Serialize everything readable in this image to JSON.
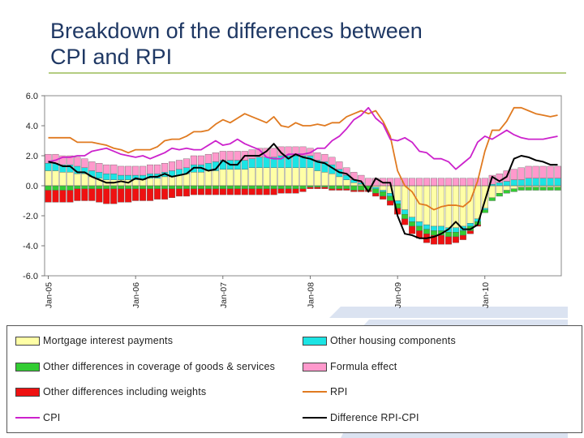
{
  "slide": {
    "title_line1": "Breakdown of the differences between",
    "title_line2": "CPI and RPI",
    "accent_color": "#9bbb59",
    "watermark_color": "#dbe3f1"
  },
  "chart_data": {
    "type": "bar",
    "stacked": true,
    "ylim": [
      -6,
      6
    ],
    "y_ticks": [
      "6.0",
      "4.0",
      "2.0",
      "0.0",
      "-2.0",
      "-4.0",
      "-6.0"
    ],
    "y_tick_values": [
      6,
      4,
      2,
      0,
      -2,
      -4,
      -6
    ],
    "x_tick_labels": [
      "Jan-05",
      "Jan-06",
      "Jan-07",
      "Jan-08",
      "Jan-09",
      "Jan-10"
    ],
    "x_tick_months": [
      0,
      12,
      24,
      36,
      48,
      60
    ],
    "grid": false,
    "legend_position": "bottom",
    "months": 71,
    "stack_series": [
      {
        "name": "Mortgage interest payments",
        "color": "#ffffa6",
        "values": [
          1.0,
          1.0,
          0.9,
          0.9,
          0.8,
          0.8,
          0.6,
          0.5,
          0.4,
          0.4,
          0.4,
          0.4,
          0.4,
          0.4,
          0.5,
          0.5,
          0.6,
          0.6,
          0.7,
          0.8,
          0.9,
          0.9,
          1.0,
          1.0,
          1.1,
          1.1,
          1.1,
          1.1,
          1.2,
          1.2,
          1.2,
          1.2,
          1.2,
          1.2,
          1.2,
          1.2,
          1.2,
          1.0,
          0.9,
          0.8,
          0.6,
          0.4,
          0.2,
          0.1,
          0.0,
          -0.1,
          -0.3,
          -0.5,
          -1.0,
          -1.6,
          -2.1,
          -2.4,
          -2.6,
          -2.7,
          -2.7,
          -2.8,
          -2.8,
          -2.7,
          -2.5,
          -2.2,
          -1.5,
          -0.8,
          -0.5,
          -0.3,
          -0.2,
          -0.1,
          -0.1,
          -0.1,
          -0.1,
          -0.1,
          -0.1
        ]
      },
      {
        "name": "Other housing components",
        "color": "#1ce4e4",
        "values": [
          0.5,
          0.5,
          0.5,
          0.5,
          0.5,
          0.4,
          0.4,
          0.4,
          0.4,
          0.4,
          0.3,
          0.3,
          0.3,
          0.3,
          0.3,
          0.3,
          0.3,
          0.4,
          0.4,
          0.4,
          0.5,
          0.5,
          0.5,
          0.6,
          0.6,
          0.6,
          0.6,
          0.6,
          0.6,
          0.7,
          0.7,
          0.7,
          0.8,
          0.8,
          0.8,
          0.8,
          0.8,
          0.7,
          0.7,
          0.6,
          0.5,
          0.3,
          0.2,
          0.1,
          0.0,
          -0.1,
          -0.1,
          -0.2,
          -0.2,
          -0.3,
          -0.3,
          -0.3,
          -0.3,
          -0.3,
          -0.3,
          -0.3,
          -0.3,
          -0.3,
          -0.2,
          -0.2,
          -0.1,
          0.1,
          0.2,
          0.3,
          0.4,
          0.4,
          0.5,
          0.5,
          0.5,
          0.5,
          0.5
        ]
      },
      {
        "name": "Other  differences in coverage of goods & services",
        "color": "#33cc33",
        "values": [
          -0.3,
          -0.3,
          -0.3,
          -0.3,
          -0.2,
          -0.2,
          -0.2,
          -0.2,
          -0.2,
          -0.2,
          -0.2,
          -0.2,
          -0.2,
          -0.2,
          -0.2,
          -0.2,
          -0.2,
          -0.2,
          -0.2,
          -0.2,
          -0.2,
          -0.2,
          -0.2,
          -0.2,
          -0.2,
          -0.2,
          -0.2,
          -0.2,
          -0.2,
          -0.2,
          -0.2,
          -0.2,
          -0.2,
          -0.2,
          -0.2,
          -0.2,
          -0.1,
          -0.1,
          -0.1,
          -0.2,
          -0.2,
          -0.2,
          -0.3,
          -0.3,
          -0.3,
          -0.3,
          -0.3,
          -0.3,
          -0.3,
          -0.3,
          -0.3,
          -0.3,
          -0.3,
          -0.3,
          -0.3,
          -0.3,
          -0.3,
          -0.3,
          -0.3,
          -0.2,
          -0.2,
          -0.2,
          -0.2,
          -0.2,
          -0.2,
          -0.2,
          -0.2,
          -0.2,
          -0.2,
          -0.2,
          -0.2
        ]
      },
      {
        "name": "Formula effect",
        "color": "#ff99cc",
        "values": [
          0.6,
          0.6,
          0.6,
          0.6,
          0.6,
          0.6,
          0.6,
          0.6,
          0.6,
          0.6,
          0.6,
          0.6,
          0.6,
          0.6,
          0.6,
          0.6,
          0.6,
          0.6,
          0.6,
          0.6,
          0.6,
          0.6,
          0.6,
          0.6,
          0.6,
          0.6,
          0.6,
          0.6,
          0.6,
          0.6,
          0.6,
          0.6,
          0.6,
          0.6,
          0.6,
          0.6,
          0.5,
          0.5,
          0.5,
          0.5,
          0.5,
          0.5,
          0.5,
          0.5,
          0.5,
          0.5,
          0.5,
          0.5,
          0.5,
          0.5,
          0.5,
          0.5,
          0.5,
          0.5,
          0.5,
          0.5,
          0.5,
          0.5,
          0.5,
          0.5,
          0.5,
          0.6,
          0.6,
          0.7,
          0.7,
          0.8,
          0.8,
          0.8,
          0.8,
          0.8,
          0.8
        ]
      },
      {
        "name": "Other differences including weights",
        "color": "#ee1111",
        "values": [
          -0.8,
          -0.8,
          -0.8,
          -0.8,
          -0.8,
          -0.8,
          -0.8,
          -0.9,
          -1.0,
          -1.0,
          -0.9,
          -0.9,
          -0.8,
          -0.8,
          -0.8,
          -0.7,
          -0.7,
          -0.6,
          -0.5,
          -0.5,
          -0.4,
          -0.4,
          -0.4,
          -0.4,
          -0.4,
          -0.4,
          -0.4,
          -0.4,
          -0.4,
          -0.4,
          -0.4,
          -0.4,
          -0.3,
          -0.3,
          -0.3,
          -0.2,
          -0.1,
          -0.1,
          -0.1,
          -0.1,
          -0.1,
          -0.1,
          -0.1,
          -0.1,
          -0.1,
          -0.2,
          -0.2,
          -0.3,
          -0.4,
          -0.4,
          -0.5,
          -0.5,
          -0.6,
          -0.6,
          -0.6,
          -0.5,
          -0.4,
          -0.3,
          -0.2,
          -0.1,
          0.0,
          0.0,
          0.0,
          0.0,
          0.0,
          0.0,
          0.0,
          0.0,
          0.0,
          0.0,
          0.0
        ]
      }
    ],
    "line_series": [
      {
        "name": "RPI",
        "color": "#e07a20",
        "values": [
          3.2,
          3.2,
          3.2,
          3.2,
          2.9,
          2.9,
          2.9,
          2.8,
          2.7,
          2.5,
          2.4,
          2.2,
          2.4,
          2.4,
          2.4,
          2.6,
          3.0,
          3.1,
          3.1,
          3.3,
          3.6,
          3.6,
          3.7,
          4.1,
          4.4,
          4.2,
          4.5,
          4.8,
          4.6,
          4.4,
          4.2,
          4.6,
          4.0,
          3.9,
          4.2,
          4.0,
          4.0,
          4.1,
          4.0,
          4.2,
          4.2,
          4.6,
          4.8,
          5.0,
          4.8,
          5.0,
          4.3,
          3.3,
          1.0,
          0.0,
          -0.4,
          -1.2,
          -1.3,
          -1.6,
          -1.4,
          -1.3,
          -1.3,
          -1.4,
          -1.0,
          0.3,
          2.3,
          3.7,
          3.7,
          4.3,
          5.2,
          5.2,
          5.0,
          4.8,
          4.7,
          4.6,
          4.7
        ]
      },
      {
        "name": "CPI",
        "color": "#cc22cc",
        "values": [
          1.6,
          1.7,
          1.9,
          1.9,
          2.0,
          2.0,
          2.3,
          2.4,
          2.5,
          2.3,
          2.1,
          2.0,
          1.9,
          2.0,
          1.8,
          2.0,
          2.2,
          2.5,
          2.4,
          2.5,
          2.4,
          2.4,
          2.7,
          3.0,
          2.7,
          2.8,
          3.1,
          2.8,
          2.6,
          2.4,
          1.9,
          1.8,
          1.8,
          2.1,
          2.1,
          2.1,
          2.2,
          2.5,
          2.5,
          3.0,
          3.3,
          3.8,
          4.4,
          4.7,
          5.2,
          4.5,
          4.1,
          3.1,
          3.0,
          3.2,
          2.9,
          2.3,
          2.2,
          1.8,
          1.8,
          1.6,
          1.1,
          1.5,
          1.9,
          2.9,
          3.3,
          3.1,
          3.4,
          3.7,
          3.4,
          3.2,
          3.1,
          3.1,
          3.1,
          3.2,
          3.3
        ]
      },
      {
        "name": "Difference RPI-CPI",
        "color": "#000000",
        "values": [
          1.6,
          1.5,
          1.3,
          1.3,
          0.9,
          0.9,
          0.6,
          0.4,
          0.2,
          0.2,
          0.3,
          0.2,
          0.5,
          0.4,
          0.6,
          0.6,
          0.8,
          0.6,
          0.7,
          0.8,
          1.2,
          1.2,
          1.0,
          1.1,
          1.7,
          1.4,
          1.4,
          2.0,
          2.0,
          2.0,
          2.3,
          2.8,
          2.2,
          1.8,
          2.1,
          1.9,
          1.8,
          1.6,
          1.5,
          1.2,
          0.9,
          0.8,
          0.4,
          0.3,
          -0.4,
          0.5,
          0.2,
          0.2,
          -2.0,
          -3.2,
          -3.3,
          -3.5,
          -3.5,
          -3.4,
          -3.2,
          -2.9,
          -2.4,
          -2.9,
          -2.9,
          -2.6,
          -1.0,
          0.6,
          0.3,
          0.6,
          1.8,
          2.0,
          1.9,
          1.7,
          1.6,
          1.4,
          1.4
        ]
      }
    ]
  },
  "legend": {
    "mortgage": "Mortgage interest payments",
    "other_housing": "Other housing components",
    "coverage": "Other  differences in coverage of goods & services",
    "formula": "Formula effect",
    "weights": "Other differences including weights",
    "rpi": "RPI",
    "cpi": "CPI",
    "difference": "Difference RPI-CPI"
  }
}
